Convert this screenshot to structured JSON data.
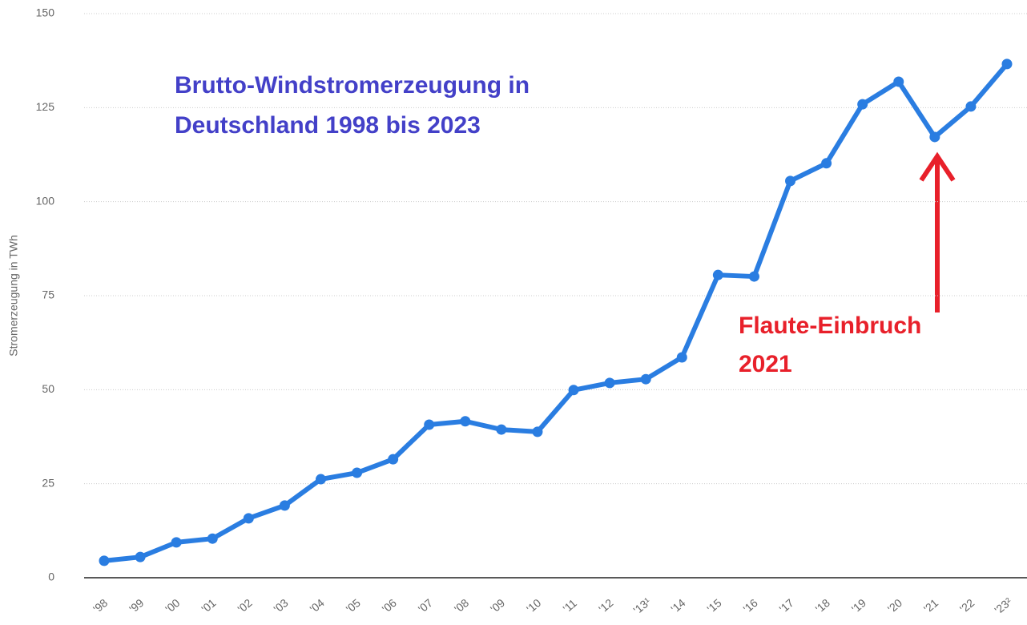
{
  "chart_data": {
    "type": "line",
    "title": [
      "Brutto-Windstromerzeugung in",
      "Deutschland 1998 bis 2023"
    ],
    "y_label": "Stromerzeugung in TWh",
    "annotation": [
      "Flaute-Einbruch",
      "2021"
    ],
    "categories": [
      "'98",
      "'99",
      "'00",
      "'01",
      "'02",
      "'03",
      "'04",
      "'05",
      "'06",
      "'07",
      "'08",
      "'09",
      "'10",
      "'11",
      "'12",
      "'13¹",
      "'14",
      "'15",
      "'16",
      "'17",
      "'18",
      "'19",
      "'20",
      "'21",
      "'22",
      "'23²"
    ],
    "values": [
      4.5,
      5.5,
      9.4,
      10.4,
      15.8,
      19.2,
      26.2,
      27.9,
      31.5,
      40.7,
      41.6,
      39.4,
      38.8,
      49.9,
      51.8,
      52.8,
      58.6,
      80.5,
      80.1,
      105.5,
      110.2,
      125.9,
      131.9,
      117.2,
      125.3,
      136.6
    ],
    "color": "#2a7de1",
    "ylim": [
      0,
      150
    ],
    "yticks": [
      0,
      25,
      50,
      75,
      100,
      125,
      150
    ],
    "grid": true
  }
}
